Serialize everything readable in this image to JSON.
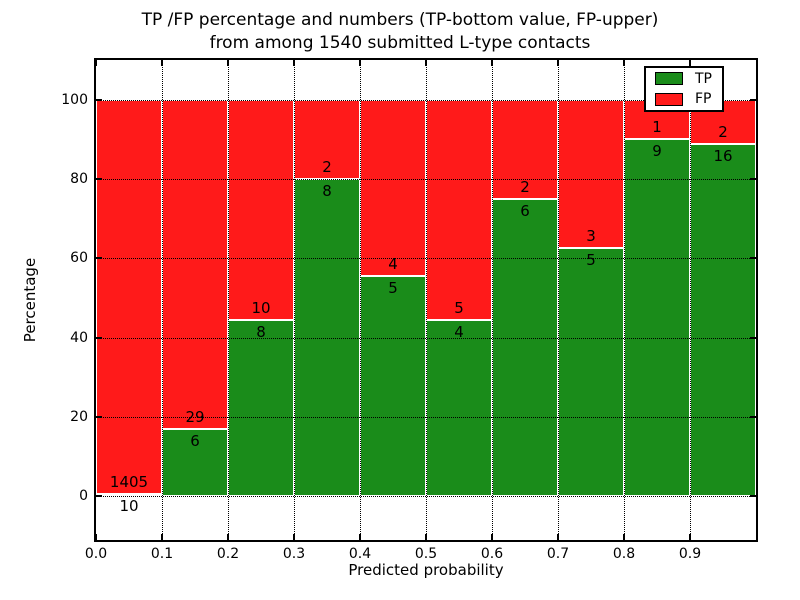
{
  "title": {
    "line1": "TP /FP percentage and numbers (TP-bottom value, FP-upper)",
    "line2": "from among 1540 submitted L-type contacts"
  },
  "chart_data": {
    "type": "bar",
    "stacked": true,
    "title": "TP /FP percentage and numbers (TP-bottom value, FP-upper)\nfrom among 1540 submitted L-type contacts",
    "xlabel": "Predicted probability",
    "ylabel": "Percentage",
    "total_submitted": 1540,
    "xlim": [
      0.0,
      1.0
    ],
    "ylim": [
      -11,
      110
    ],
    "bin_width": 0.1,
    "xticks": [
      "0.0",
      "0.1",
      "0.2",
      "0.3",
      "0.4",
      "0.5",
      "0.6",
      "0.7",
      "0.8",
      "0.9"
    ],
    "yticks": [
      "0",
      "20",
      "40",
      "60",
      "80",
      "100"
    ],
    "grid": true,
    "grid_style": "dotted",
    "legend": {
      "position": "upper right",
      "items": [
        {
          "label": "TP",
          "color": "#1a8c1a"
        },
        {
          "label": "FP",
          "color": "#ff1a1a"
        }
      ]
    },
    "bars": [
      {
        "x_start": 0.0,
        "x_end": 0.1,
        "tp_count": 10,
        "fp_count": 1405,
        "tp_pct": 0.7,
        "fp_pct": 99.3
      },
      {
        "x_start": 0.1,
        "x_end": 0.2,
        "tp_count": 6,
        "fp_count": 29,
        "tp_pct": 17.1,
        "fp_pct": 82.9
      },
      {
        "x_start": 0.2,
        "x_end": 0.3,
        "tp_count": 8,
        "fp_count": 10,
        "tp_pct": 44.4,
        "fp_pct": 55.6
      },
      {
        "x_start": 0.3,
        "x_end": 0.4,
        "tp_count": 8,
        "fp_count": 2,
        "tp_pct": 80.0,
        "fp_pct": 20.0
      },
      {
        "x_start": 0.4,
        "x_end": 0.5,
        "tp_count": 5,
        "fp_count": 4,
        "tp_pct": 55.6,
        "fp_pct": 44.4
      },
      {
        "x_start": 0.5,
        "x_end": 0.6,
        "tp_count": 4,
        "fp_count": 5,
        "tp_pct": 44.4,
        "fp_pct": 55.6
      },
      {
        "x_start": 0.6,
        "x_end": 0.7,
        "tp_count": 6,
        "fp_count": 2,
        "tp_pct": 75.0,
        "fp_pct": 25.0
      },
      {
        "x_start": 0.7,
        "x_end": 0.8,
        "tp_count": 5,
        "fp_count": 3,
        "tp_pct": 62.5,
        "fp_pct": 37.5
      },
      {
        "x_start": 0.8,
        "x_end": 0.9,
        "tp_count": 9,
        "fp_count": 1,
        "tp_pct": 90.0,
        "fp_pct": 10.0
      },
      {
        "x_start": 0.9,
        "x_end": 1.0,
        "tp_count": 16,
        "fp_count": 2,
        "tp_pct": 88.9,
        "fp_pct": 11.1
      }
    ],
    "colors": {
      "tp": "#1a8c1a",
      "fp": "#ff1a1a",
      "grid": "#000000",
      "bar_edge": "#ffffff",
      "background": "#ffffff",
      "text": "#000000"
    }
  }
}
